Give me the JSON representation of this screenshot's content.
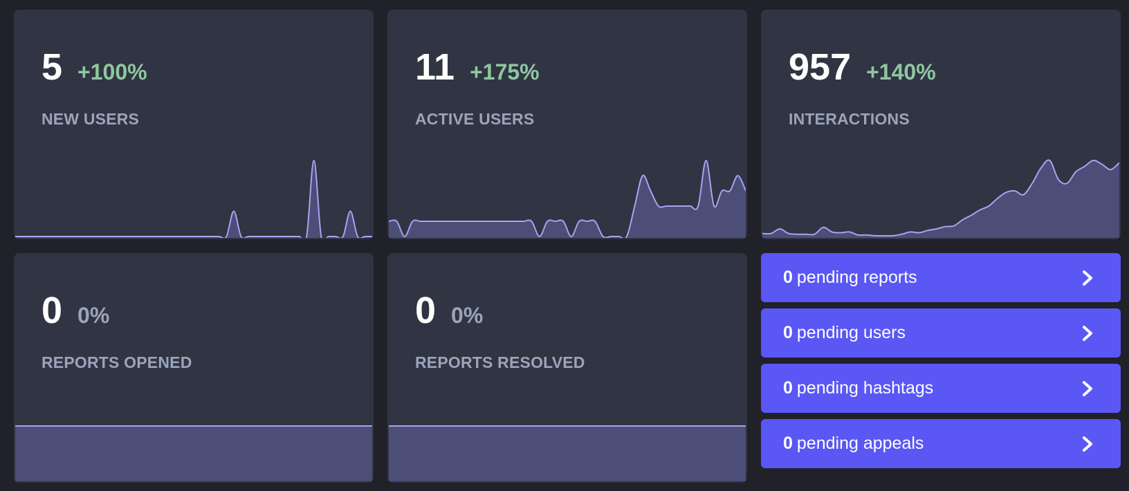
{
  "cards": [
    {
      "value": "5",
      "change": "+100%",
      "label": "NEW USERS",
      "change_color": "#8fc7a0"
    },
    {
      "value": "11",
      "change": "+175%",
      "label": "ACTIVE USERS",
      "change_color": "#8fc7a0"
    },
    {
      "value": "957",
      "change": "+140%",
      "label": "INTERACTIONS",
      "change_color": "#8fc7a0"
    },
    {
      "value": "0",
      "change": "0%",
      "label": "REPORTS OPENED",
      "change_color": "#9aa5bc"
    },
    {
      "value": "0",
      "change": "0%",
      "label": "REPORTS RESOLVED",
      "change_color": "#9aa5bc"
    }
  ],
  "sparklines": {
    "new_users": [
      0,
      0,
      0,
      0,
      0,
      0,
      0,
      0,
      0,
      0,
      0,
      0,
      0,
      0,
      0,
      0,
      0,
      0,
      0,
      0,
      0,
      0,
      0,
      0,
      0,
      0,
      0,
      0,
      0,
      0,
      1,
      0,
      0,
      0,
      0,
      0,
      0,
      0,
      0,
      0,
      0,
      3,
      0,
      0,
      0,
      0,
      1,
      0,
      0,
      0
    ],
    "active_users": [
      1,
      1,
      0,
      1,
      1,
      1,
      1,
      1,
      1,
      1,
      1,
      1,
      1,
      1,
      1,
      1,
      1,
      1,
      1,
      0,
      1,
      1,
      1,
      0,
      1,
      1,
      1,
      0,
      0,
      0,
      0,
      2,
      4,
      3,
      2,
      2,
      2,
      2,
      2,
      2,
      5,
      2,
      3,
      3,
      4,
      3
    ],
    "interactions": [
      4,
      4,
      10,
      4,
      3,
      3,
      3,
      12,
      6,
      5,
      6,
      2,
      2,
      1,
      1,
      1,
      3,
      6,
      5,
      8,
      10,
      13,
      14,
      22,
      28,
      35,
      40,
      50,
      58,
      60,
      55,
      70,
      90,
      100,
      75,
      70,
      85,
      92,
      100,
      95,
      88,
      97
    ],
    "reports_opened": [
      0,
      0
    ],
    "reports_resolved": [
      0,
      0
    ]
  },
  "pending": [
    {
      "count": "0",
      "text": "pending reports"
    },
    {
      "count": "0",
      "text": "pending users"
    },
    {
      "count": "0",
      "text": "pending hashtags"
    },
    {
      "count": "0",
      "text": "pending appeals"
    }
  ],
  "colors": {
    "background": "#202129",
    "card": "#313442",
    "spark_line": "#a4a6f0",
    "spark_fill": "#4c4e78",
    "pending_button": "#5a57f5",
    "positive": "#8fc7a0",
    "neutral": "#9aa5bc"
  },
  "icons": {
    "pending_chevron": "chevron-right-icon"
  }
}
